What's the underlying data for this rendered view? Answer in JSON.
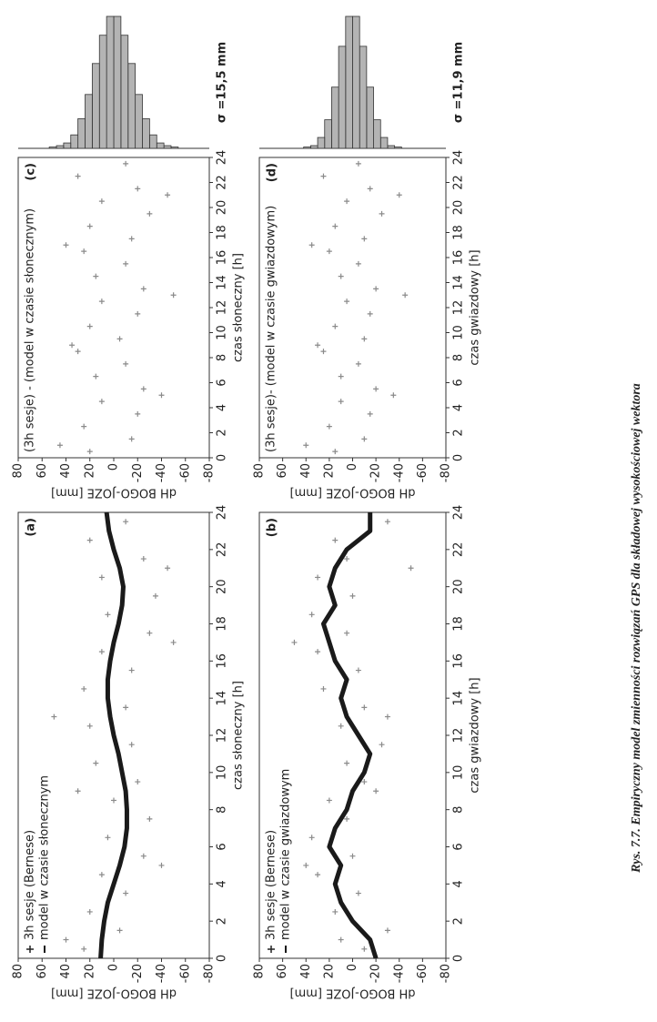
{
  "caption": "Rys. 7.7. Empiryczny model zmienności rozwiązań GPS dla składowej wysokościowej wektora",
  "chart_data": [
    {
      "type": "scatter",
      "title": "(a)",
      "x_label": "czas słoneczny [h]",
      "y_label": "dH BOGO-JOZE [mm]",
      "xlim": [
        0,
        24
      ],
      "xticks": [
        0,
        2,
        4,
        6,
        8,
        10,
        12,
        14,
        16,
        18,
        20,
        22,
        24
      ],
      "ylim": [
        -80,
        80
      ],
      "yticks": [
        80,
        60,
        40,
        20,
        0,
        -20,
        -40,
        -60,
        -80
      ],
      "series": [
        {
          "name": "3h sesje (Bernese)",
          "color": "#8a8a8a",
          "x": [
            0.5,
            1.5,
            2.5,
            3.5,
            4.5,
            5.5,
            6.5,
            7.5,
            8.5,
            9.5,
            10.5,
            11.5,
            12.5,
            13.5,
            14.5,
            15.5,
            16.5,
            17.5,
            18.5,
            19.5,
            20.5,
            21.5,
            22.5,
            23.5,
            1,
            5,
            9,
            13,
            17,
            21
          ],
          "values": [
            25,
            -5,
            20,
            -10,
            10,
            -25,
            5,
            -30,
            0,
            -20,
            15,
            -15,
            20,
            -10,
            25,
            -15,
            10,
            -30,
            5,
            -35,
            10,
            -25,
            20,
            -10,
            40,
            -40,
            30,
            50,
            -50,
            -45
          ]
        },
        {
          "name": "model w czasie słonecznym",
          "color": "#1a1a1a",
          "x": [
            0,
            1,
            2,
            3,
            4,
            5,
            6,
            7,
            8,
            9,
            10,
            11,
            12,
            13,
            14,
            15,
            16,
            17,
            18,
            19,
            20,
            21,
            22,
            23,
            24
          ],
          "values": [
            11,
            10,
            8,
            5,
            0,
            -5,
            -9,
            -11,
            -11,
            -10,
            -7,
            -4,
            0,
            3,
            5,
            5,
            3,
            0,
            -4,
            -7,
            -8,
            -5,
            0,
            4,
            6
          ]
        }
      ]
    },
    {
      "type": "scatter",
      "title": "(b)",
      "x_label": "czas gwiazdowy [h]",
      "y_label": "dH BOGO-JOZE [mm]",
      "xlim": [
        0,
        24
      ],
      "xticks": [
        0,
        2,
        4,
        6,
        8,
        10,
        12,
        14,
        16,
        18,
        20,
        22,
        24
      ],
      "ylim": [
        -80,
        80
      ],
      "yticks": [
        80,
        60,
        40,
        20,
        0,
        -20,
        -40,
        -60,
        -80
      ],
      "series": [
        {
          "name": "3h sesje (Bernese)",
          "color": "#8a8a8a",
          "x": [
            0.5,
            1.5,
            2.5,
            3.5,
            4.5,
            5.5,
            6.5,
            7.5,
            8.5,
            9.5,
            10.5,
            11.5,
            12.5,
            13.5,
            14.5,
            15.5,
            16.5,
            17.5,
            18.5,
            19.5,
            20.5,
            21.5,
            22.5,
            23.5,
            1,
            5,
            9,
            13,
            17,
            21
          ],
          "values": [
            -10,
            -30,
            15,
            -5,
            30,
            0,
            35,
            5,
            20,
            -10,
            5,
            -25,
            10,
            -10,
            25,
            -5,
            30,
            5,
            35,
            0,
            30,
            5,
            15,
            -30,
            10,
            40,
            -20,
            -30,
            50,
            -50
          ]
        },
        {
          "name": "model w czasie gwiazdowym",
          "color": "#1a1a1a",
          "x": [
            0,
            1,
            2,
            3,
            4,
            5,
            6,
            7,
            8,
            9,
            10,
            11,
            12,
            13,
            14,
            15,
            16,
            17,
            18,
            19,
            20,
            21,
            22,
            23,
            24
          ],
          "values": [
            -20,
            -15,
            0,
            10,
            15,
            10,
            20,
            15,
            5,
            0,
            -10,
            -15,
            -5,
            5,
            10,
            5,
            15,
            20,
            25,
            15,
            20,
            15,
            5,
            -15,
            -15
          ]
        }
      ]
    },
    {
      "type": "scatter",
      "title": "(c)",
      "x_label": "czas słoneczny [h]",
      "y_label": "dH BOGO-JOZE [mm]",
      "xlim": [
        0,
        24
      ],
      "xticks": [
        0,
        2,
        4,
        6,
        8,
        10,
        12,
        14,
        16,
        18,
        20,
        22,
        24
      ],
      "ylim": [
        -80,
        80
      ],
      "yticks": [
        80,
        60,
        40,
        20,
        0,
        -20,
        -40,
        -60,
        -80
      ],
      "series": [
        {
          "name": "(3h sesje) - (model w czasie słonecznym)",
          "color": "#8a8a8a",
          "x": [
            0.5,
            1.5,
            2.5,
            3.5,
            4.5,
            5.5,
            6.5,
            7.5,
            8.5,
            9.5,
            10.5,
            11.5,
            12.5,
            13.5,
            14.5,
            15.5,
            16.5,
            17.5,
            18.5,
            19.5,
            20.5,
            21.5,
            22.5,
            23.5,
            1,
            5,
            9,
            13,
            17,
            21
          ],
          "values": [
            20,
            -15,
            25,
            -20,
            10,
            -25,
            15,
            -10,
            30,
            -5,
            20,
            -20,
            10,
            -25,
            15,
            -10,
            25,
            -15,
            20,
            -30,
            10,
            -20,
            30,
            -10,
            45,
            -40,
            35,
            -50,
            40,
            -45
          ]
        }
      ],
      "histogram": {
        "bins": [
          -60,
          -54,
          -48,
          -42,
          -36,
          -30,
          -24,
          -18,
          -12,
          -6,
          0,
          6,
          12,
          18,
          24,
          30,
          36,
          42,
          48,
          54,
          60
        ],
        "counts": [
          0,
          1,
          2,
          4,
          10,
          22,
          40,
          63,
          84,
          98,
          98,
          84,
          63,
          40,
          22,
          10,
          4,
          2,
          1,
          0
        ],
        "color": "#b4b4b4"
      },
      "sigma_label": "σ =15,5 mm"
    },
    {
      "type": "scatter",
      "title": "(d)",
      "x_label": "czas gwiazdowy [h]",
      "y_label": "dH BOGO-JOZE [mm]",
      "xlim": [
        0,
        24
      ],
      "xticks": [
        0,
        2,
        4,
        6,
        8,
        10,
        12,
        14,
        16,
        18,
        20,
        22,
        24
      ],
      "ylim": [
        -80,
        80
      ],
      "yticks": [
        80,
        60,
        40,
        20,
        0,
        -20,
        -40,
        -60,
        -80
      ],
      "series": [
        {
          "name": "(3h sesje)- (model w czasie gwiazdowym)",
          "color": "#8a8a8a",
          "x": [
            0.5,
            1.5,
            2.5,
            3.5,
            4.5,
            5.5,
            6.5,
            7.5,
            8.5,
            9.5,
            10.5,
            11.5,
            12.5,
            13.5,
            14.5,
            15.5,
            16.5,
            17.5,
            18.5,
            19.5,
            20.5,
            21.5,
            22.5,
            23.5,
            1,
            5,
            9,
            13,
            17,
            21
          ],
          "values": [
            15,
            -10,
            20,
            -15,
            10,
            -20,
            10,
            -5,
            25,
            -10,
            15,
            -15,
            5,
            -20,
            10,
            -5,
            20,
            -10,
            15,
            -25,
            5,
            -15,
            25,
            -5,
            40,
            -35,
            30,
            -45,
            35,
            -40
          ]
        }
      ],
      "histogram": {
        "bins": [
          -60,
          -54,
          -48,
          -42,
          -36,
          -30,
          -24,
          -18,
          -12,
          -6,
          0,
          6,
          12,
          18,
          24,
          30,
          36,
          42,
          48,
          54,
          60
        ],
        "counts": [
          0,
          0,
          0,
          1,
          2,
          8,
          21,
          45,
          75,
          97,
          97,
          75,
          45,
          21,
          8,
          2,
          1,
          0,
          0,
          0
        ],
        "color": "#b4b4b4"
      },
      "sigma_label": "σ =11,9 mm"
    }
  ]
}
